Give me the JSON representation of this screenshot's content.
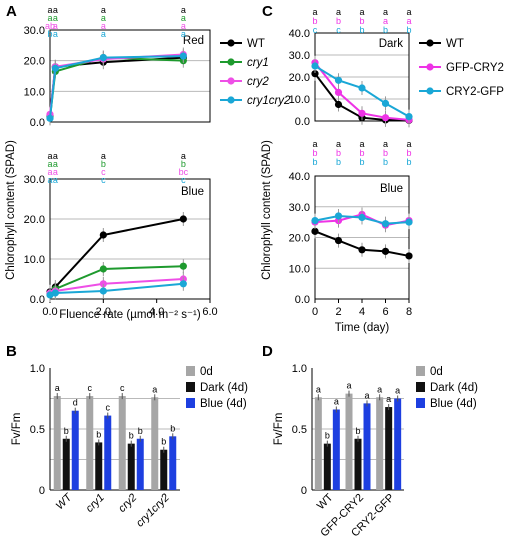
{
  "panel_letters": [
    "A",
    "B",
    "C",
    "D"
  ],
  "colors": {
    "WT": "#000000",
    "cry1": "#1e9a2e",
    "cry2": "#ee4fe6",
    "cry1cry2": "#1aa7d6",
    "GFP-CRY2": "#ee33e6",
    "CRY2-GFP": "#1aa7d6",
    "0d": "#a6a6a6",
    "Dark (4d)": "#111111",
    "Blue (4d)": "#1d3fe0"
  },
  "chart_data": [
    {
      "id": "A-red",
      "type": "line",
      "inset_label": "Red",
      "xlim": [
        0,
        6
      ],
      "ylim": [
        0,
        30
      ],
      "yticks": [
        "0.0",
        "10.0",
        "20.0",
        "30.0"
      ],
      "x": [
        0,
        0.2,
        2,
        5
      ],
      "series": [
        {
          "name": "WT",
          "values": [
            2.0,
            18.0,
            19.5,
            21.0
          ]
        },
        {
          "name": "cry1",
          "values": [
            1.5,
            16.5,
            21.0,
            20.0
          ]
        },
        {
          "name": "cry2",
          "values": [
            2.5,
            18.0,
            20.5,
            22.0
          ]
        },
        {
          "name": "cry1cry2",
          "values": [
            1.2,
            17.5,
            21.0,
            21.5
          ]
        }
      ],
      "significance": [
        {
          "x": 0,
          "letters": [
            "a",
            "a",
            "ab",
            "b"
          ]
        },
        {
          "x": 0.2,
          "letters": [
            "a",
            "a",
            "a",
            "a"
          ]
        },
        {
          "x": 2,
          "letters": [
            "a",
            "a",
            "a",
            "a"
          ]
        },
        {
          "x": 5,
          "letters": [
            "a",
            "a",
            "a",
            "a"
          ]
        }
      ]
    },
    {
      "id": "A-blue",
      "type": "line",
      "inset_label": "Blue",
      "xlim": [
        0,
        6
      ],
      "ylim": [
        0,
        30
      ],
      "yticks": [
        "0.0",
        "10.0",
        "20.0",
        "30.0"
      ],
      "xticks": [
        "0.0",
        "2.0",
        "4.0",
        "6.0"
      ],
      "xlabel": "Fluence rate (µmol m⁻² s⁻¹)",
      "x": [
        0,
        0.2,
        2,
        5
      ],
      "series": [
        {
          "name": "WT",
          "values": [
            1.8,
            3.0,
            16.0,
            20.0
          ]
        },
        {
          "name": "cry1",
          "values": [
            1.3,
            2.5,
            7.5,
            8.2
          ]
        },
        {
          "name": "cry2",
          "values": [
            1.5,
            2.0,
            3.8,
            5.0
          ]
        },
        {
          "name": "cry1cry2",
          "values": [
            1.0,
            1.5,
            2.0,
            3.8
          ]
        }
      ],
      "significance": [
        {
          "x": 0,
          "letters": [
            "a",
            "a",
            "a",
            "a"
          ]
        },
        {
          "x": 0.2,
          "letters": [
            "a",
            "a",
            "a",
            "a"
          ]
        },
        {
          "x": 2,
          "letters": [
            "a",
            "b",
            "c",
            "c"
          ]
        },
        {
          "x": 5,
          "letters": [
            "a",
            "b",
            "bc",
            "c"
          ]
        }
      ]
    },
    {
      "id": "C-dark",
      "type": "line",
      "inset_label": "Dark",
      "xlim": [
        0,
        8
      ],
      "ylim": [
        0,
        40
      ],
      "yticks": [
        "0.0",
        "10.0",
        "20.0",
        "30.0",
        "40.0"
      ],
      "x": [
        0,
        2,
        4,
        6,
        8
      ],
      "series": [
        {
          "name": "WT",
          "values": [
            21.5,
            7.5,
            1.5,
            0.5,
            0.3
          ]
        },
        {
          "name": "GFP-CRY2",
          "values": [
            26.5,
            13.0,
            3.5,
            1.5,
            0.5
          ]
        },
        {
          "name": "CRY2-GFP",
          "values": [
            25.0,
            18.5,
            15.0,
            8.0,
            2.0
          ]
        }
      ],
      "significance": [
        {
          "x": 0,
          "letters": [
            "a",
            "b",
            "c"
          ]
        },
        {
          "x": 2,
          "letters": [
            "a",
            "b",
            "c"
          ]
        },
        {
          "x": 4,
          "letters": [
            "a",
            "b",
            "b"
          ]
        },
        {
          "x": 6,
          "letters": [
            "a",
            "a",
            "b"
          ]
        },
        {
          "x": 8,
          "letters": [
            "a",
            "a",
            "b"
          ]
        }
      ]
    },
    {
      "id": "C-blue",
      "type": "line",
      "inset_label": "Blue",
      "xlim": [
        0,
        8
      ],
      "ylim": [
        0,
        40
      ],
      "yticks": [
        "0.0",
        "10.0",
        "20.0",
        "30.0",
        "40.0"
      ],
      "xticks": [
        "0",
        "2",
        "4",
        "6",
        "8"
      ],
      "xlabel": "Time (day)",
      "x": [
        0,
        2,
        4,
        6,
        8
      ],
      "series": [
        {
          "name": "WT",
          "values": [
            22.0,
            19.0,
            16.0,
            15.5,
            14.0
          ]
        },
        {
          "name": "GFP-CRY2",
          "values": [
            25.0,
            25.5,
            27.5,
            24.0,
            25.5
          ]
        },
        {
          "name": "CRY2-GFP",
          "values": [
            25.5,
            27.0,
            26.5,
            24.5,
            25.0
          ]
        }
      ],
      "significance": [
        {
          "x": 0,
          "letters": [
            "a",
            "b",
            "b"
          ]
        },
        {
          "x": 2,
          "letters": [
            "a",
            "b",
            "b"
          ]
        },
        {
          "x": 4,
          "letters": [
            "a",
            "b",
            "b"
          ]
        },
        {
          "x": 6,
          "letters": [
            "a",
            "b",
            "b"
          ]
        },
        {
          "x": 8,
          "letters": [
            "a",
            "b",
            "b"
          ]
        }
      ]
    },
    {
      "id": "B",
      "type": "bar",
      "ylabel": "Fv/Fm",
      "ylim": [
        0,
        1
      ],
      "yticks": [
        "0",
        "0.5",
        "1.0"
      ],
      "categories": [
        "WT",
        "cry1",
        "cry2",
        "cry1cry2"
      ],
      "italic_categories": true,
      "series": [
        {
          "name": "0d",
          "values": [
            0.77,
            0.77,
            0.77,
            0.76
          ]
        },
        {
          "name": "Dark (4d)",
          "values": [
            0.42,
            0.39,
            0.38,
            0.33
          ]
        },
        {
          "name": "Blue (4d)",
          "values": [
            0.65,
            0.61,
            0.42,
            0.44
          ]
        }
      ],
      "labels": [
        [
          "a",
          "b",
          "d"
        ],
        [
          "c",
          "b",
          "c"
        ],
        [
          "c",
          "b",
          "b"
        ],
        [
          "a",
          "b",
          "b"
        ]
      ]
    },
    {
      "id": "D",
      "type": "bar",
      "ylabel": "Fv/Fm",
      "ylim": [
        0,
        1
      ],
      "yticks": [
        "0",
        "0.5",
        "1.0"
      ],
      "categories": [
        "WT",
        "GFP-CRY2",
        "CRY2-GFP"
      ],
      "italic_categories": false,
      "series": [
        {
          "name": "0d",
          "values": [
            0.76,
            0.79,
            0.76
          ]
        },
        {
          "name": "Dark (4d)",
          "values": [
            0.38,
            0.42,
            0.68
          ]
        },
        {
          "name": "Blue (4d)",
          "values": [
            0.66,
            0.71,
            0.75
          ]
        }
      ],
      "labels": [
        [
          "a",
          "b",
          "a"
        ],
        [
          "a",
          "b",
          "a"
        ],
        [
          "a",
          "a",
          "a"
        ]
      ]
    }
  ],
  "shared_labels": {
    "A_ylabel": "Chlorophyll content (SPAD)",
    "C_ylabel": "Chlorophyll content (SPAD)"
  },
  "legends": {
    "A": [
      {
        "name": "WT",
        "italic": false
      },
      {
        "name": "cry1",
        "italic": true
      },
      {
        "name": "cry2",
        "italic": true
      },
      {
        "name": "cry1cry2",
        "italic": true
      }
    ],
    "C": [
      {
        "name": "WT"
      },
      {
        "name": "GFP-CRY2"
      },
      {
        "name": "CRY2-GFP"
      }
    ],
    "bars": [
      "0d",
      "Dark (4d)",
      "Blue (4d)"
    ]
  }
}
